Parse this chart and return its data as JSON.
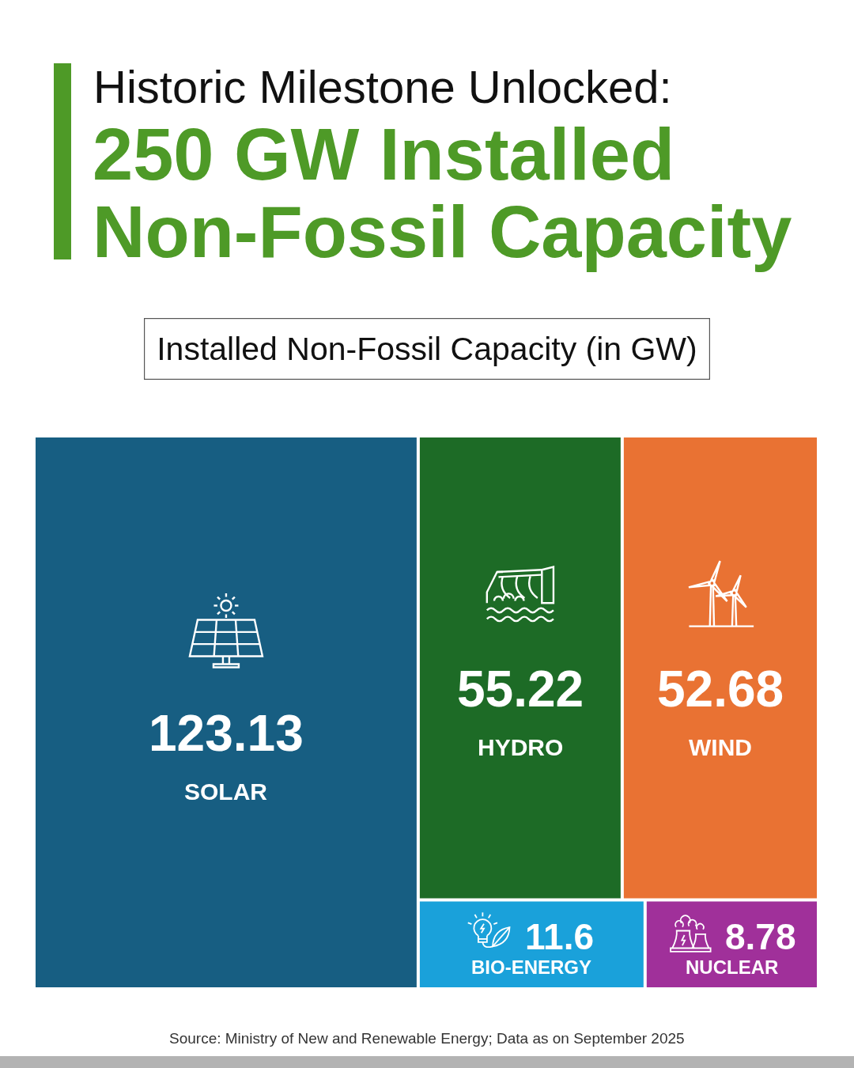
{
  "chart_data": {
    "type": "other",
    "title": "Historic Milestone Unlocked:",
    "subtitle": "250 GW Installed Non-Fossil Capacity",
    "categories": [
      "SOLAR",
      "HYDRO",
      "WIND",
      "BIO-ENERGY",
      "NUCLEAR"
    ],
    "values": [
      123.13,
      55.22,
      52.68,
      11.6,
      8.78
    ],
    "colors": [
      "#175e82",
      "#1d6b26",
      "#e97233",
      "#1aa1da",
      "#a0309a"
    ],
    "data_labels": true,
    "annotations": [
      "Installed Non-Fossil Capacity (in GW)",
      "Source: Ministry of New and Renewable Energy; Data as on September 2025"
    ]
  }
}
